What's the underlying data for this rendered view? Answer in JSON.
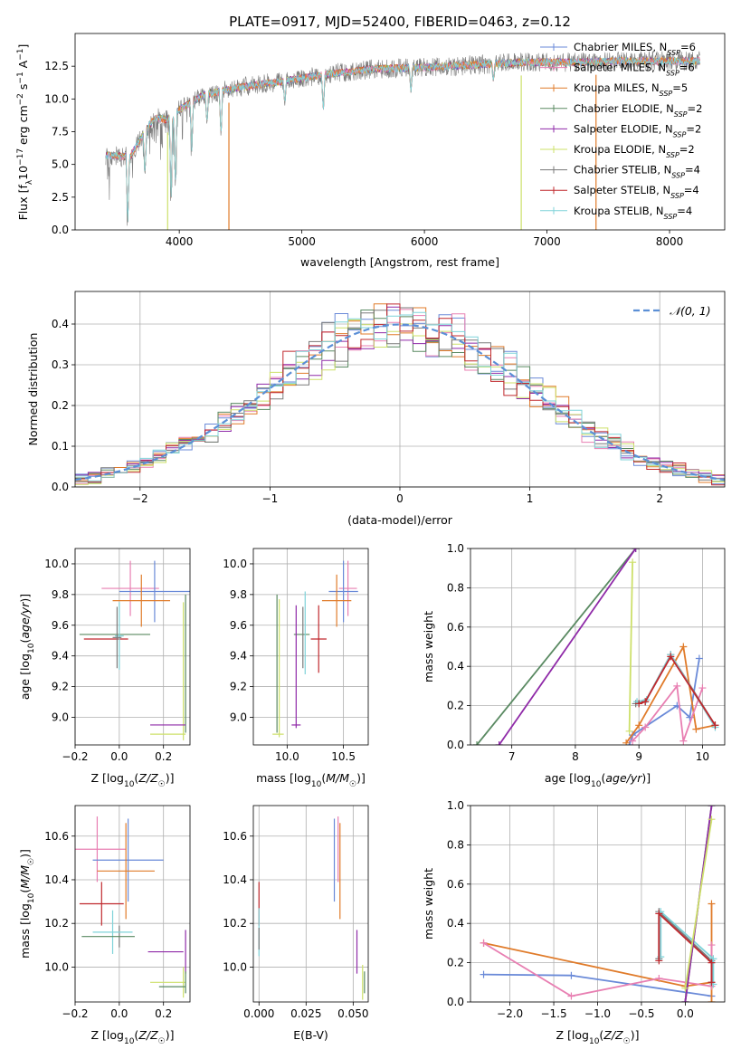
{
  "figure_title": "PLATE=0917, MJD=52400, FIBERID=0463, z=0.12",
  "colors": {
    "chabrier_miles": "#6a8ad8",
    "salpeter_miles": "#e87fb2",
    "kroupa_miles": "#e07b2a",
    "chabrier_elodie": "#5a8a62",
    "salpeter_elodie": "#8f2aa8",
    "kroupa_elodie": "#cde06a",
    "chabrier_stelib": "#7a7a7a",
    "salpeter_stelib": "#c0282d",
    "kroupa_stelib": "#7fd3d9",
    "gaussian": "#5b8fd6",
    "grid": "#b0b0b0"
  },
  "legend_entries": [
    {
      "key": "chabrier_miles",
      "label": "Chabrier MILES, N",
      "sub": "SSP",
      "tail": "=6"
    },
    {
      "key": "salpeter_miles",
      "label": "Salpeter MILES, N",
      "sub": "SSP",
      "tail": "=6"
    },
    {
      "key": "kroupa_miles",
      "label": "Kroupa MILES, N",
      "sub": "SSP",
      "tail": "=5"
    },
    {
      "key": "chabrier_elodie",
      "label": "Chabrier ELODIE, N",
      "sub": "SSP",
      "tail": "=2"
    },
    {
      "key": "salpeter_elodie",
      "label": "Salpeter ELODIE, N",
      "sub": "SSP",
      "tail": "=2"
    },
    {
      "key": "kroupa_elodie",
      "label": "Kroupa ELODIE, N",
      "sub": "SSP",
      "tail": "=2"
    },
    {
      "key": "chabrier_stelib",
      "label": "Chabrier STELIB, N",
      "sub": "SSP",
      "tail": "=4"
    },
    {
      "key": "salpeter_stelib",
      "label": "Salpeter STELIB, N",
      "sub": "SSP",
      "tail": "=4"
    },
    {
      "key": "kroupa_stelib",
      "label": "Kroupa STELIB, N",
      "sub": "SSP",
      "tail": "=4"
    }
  ],
  "chart_data": [
    {
      "id": "spectrum",
      "type": "line",
      "title": "PLATE=0917, MJD=52400, FIBERID=0463, z=0.12",
      "xlabel": "wavelength [Angstrom, rest frame]",
      "ylabel": "Flux [f_λ 10^-17 erg cm^-2 s^-1 A^-1]",
      "xlim": [
        3150,
        8450
      ],
      "ylim": [
        0,
        15
      ],
      "xticks": [
        4000,
        5000,
        6000,
        7000,
        8000
      ],
      "yticks": [
        0.0,
        2.5,
        5.0,
        7.5,
        10.0,
        12.5
      ],
      "continuum_knots": [
        [
          3400,
          5.7
        ],
        [
          3600,
          5.6
        ],
        [
          3700,
          7.2
        ],
        [
          3800,
          8.6
        ],
        [
          3900,
          8.4
        ],
        [
          4000,
          9.2
        ],
        [
          4200,
          10.3
        ],
        [
          4500,
          10.9
        ],
        [
          4800,
          11.3
        ],
        [
          5000,
          11.6
        ],
        [
          5300,
          12.0
        ],
        [
          5600,
          12.3
        ],
        [
          6000,
          12.4
        ],
        [
          6400,
          12.6
        ],
        [
          6800,
          12.8
        ],
        [
          7200,
          12.8
        ],
        [
          7600,
          12.9
        ],
        [
          8000,
          12.9
        ],
        [
          8250,
          12.9
        ]
      ],
      "dips": [
        [
          3580,
          0.6
        ],
        [
          3720,
          4.0
        ],
        [
          3933,
          2.0
        ],
        [
          3968,
          3.0
        ],
        [
          4102,
          6.0
        ],
        [
          4226,
          8.0
        ],
        [
          4340,
          7.0
        ],
        [
          4861,
          9.5
        ],
        [
          5175,
          9.0
        ],
        [
          5890,
          10.5
        ],
        [
          6563,
          11.3
        ]
      ],
      "spikes": [
        [
          3905,
          "kroupa_elodie"
        ],
        [
          4405,
          "kroupa_miles"
        ],
        [
          6790,
          "kroupa_elodie"
        ],
        [
          7400,
          "kroupa_miles"
        ]
      ]
    },
    {
      "id": "residuals",
      "type": "histogram",
      "xlabel": "(data-model)/error",
      "ylabel": "Normed distribution",
      "xlim": [
        -2.5,
        2.5
      ],
      "ylim": [
        0,
        0.48
      ],
      "xticks": [
        -2,
        -1,
        0,
        1,
        2
      ],
      "yticks": [
        0.0,
        0.1,
        0.2,
        0.3,
        0.4
      ],
      "bin_width": 0.1,
      "legend": "𝒩(0, 1)"
    },
    {
      "id": "age_vs_z",
      "type": "errorbar",
      "xlabel": "Z [log10(Z/Z☉)]",
      "ylabel": "age [log10(age/yr)]",
      "xlim": [
        -0.2,
        0.32
      ],
      "ylim": [
        8.82,
        10.1
      ],
      "xticks": [
        -0.2,
        0.0,
        0.2
      ],
      "yticks": [
        9.0,
        9.2,
        9.4,
        9.6,
        9.8,
        10.0
      ],
      "points": [
        {
          "key": "salpeter_miles",
          "x": 0.05,
          "xerr": 0.13,
          "y": 9.84,
          "yerr": 0.18
        },
        {
          "key": "chabrier_miles",
          "x": 0.16,
          "xerr": 0.16,
          "y": 9.82,
          "yerr": 0.2
        },
        {
          "key": "kroupa_miles",
          "x": 0.1,
          "xerr": 0.13,
          "y": 9.76,
          "yerr": 0.17
        },
        {
          "key": "chabrier_elodie",
          "x": -0.02,
          "xerr": 0.16,
          "y": 9.54,
          "yerr": 0.0
        },
        {
          "key": "salpeter_stelib",
          "x": -0.06,
          "xerr": 0.1,
          "y": 9.51,
          "yerr": 0.0
        },
        {
          "key": "kroupa_stelib",
          "x": 0.0,
          "xerr": 0.02,
          "y": 9.53,
          "yerr": 0.22
        },
        {
          "key": "chabrier_stelib",
          "x": -0.01,
          "xerr": 0.02,
          "y": 9.52,
          "yerr": 0.2
        },
        {
          "key": "salpeter_elodie",
          "x": 0.3,
          "xerr": 0.0,
          "y": 8.95,
          "yerr": 0.0
        },
        {
          "key": "kroupa_elodie",
          "x": 0.29,
          "xerr": 0.0,
          "y": 9.3,
          "yerr": 0.45
        },
        {
          "key": "chabrier_elodie",
          "x": 0.3,
          "xerr": 0.0,
          "y": 9.35,
          "yerr": 0.45
        },
        {
          "key": "salpeter_elodie",
          "x": 0.22,
          "xerr": 0.08,
          "y": 8.95,
          "yerr": 0.0
        },
        {
          "key": "kroupa_elodie",
          "x": 0.22,
          "xerr": 0.08,
          "y": 8.89,
          "yerr": 0.0
        }
      ]
    },
    {
      "id": "age_vs_mass",
      "type": "errorbar",
      "xlabel": "mass [log10(M/M☉)]",
      "ylabel": "",
      "xlim": [
        9.7,
        10.72
      ],
      "ylim": [
        8.82,
        10.1
      ],
      "xticks": [
        10.0,
        10.5
      ],
      "yticks": [
        9.0,
        9.2,
        9.4,
        9.6,
        9.8,
        10.0
      ],
      "points": [
        {
          "key": "salpeter_miles",
          "x": 10.54,
          "xerr": 0.08,
          "y": 9.84,
          "yerr": 0.18
        },
        {
          "key": "chabrier_miles",
          "x": 10.5,
          "xerr": 0.13,
          "y": 9.82,
          "yerr": 0.2
        },
        {
          "key": "kroupa_miles",
          "x": 10.44,
          "xerr": 0.13,
          "y": 9.76,
          "yerr": 0.17
        },
        {
          "key": "chabrier_elodie",
          "x": 10.13,
          "xerr": 0.07,
          "y": 9.54,
          "yerr": 0.0
        },
        {
          "key": "salpeter_stelib",
          "x": 10.28,
          "xerr": 0.07,
          "y": 9.51,
          "yerr": 0.22
        },
        {
          "key": "kroupa_stelib",
          "x": 10.16,
          "xerr": 0.0,
          "y": 9.55,
          "yerr": 0.27
        },
        {
          "key": "chabrier_stelib",
          "x": 10.14,
          "xerr": 0.0,
          "y": 9.52,
          "yerr": 0.2
        },
        {
          "key": "salpeter_elodie",
          "x": 10.08,
          "xerr": 0.0,
          "y": 9.33,
          "yerr": 0.4
        },
        {
          "key": "salpeter_elodie",
          "x": 10.08,
          "xerr": 0.04,
          "y": 8.95,
          "yerr": 0.0
        },
        {
          "key": "kroupa_elodie",
          "x": 9.93,
          "xerr": 0.0,
          "y": 9.32,
          "yerr": 0.45
        },
        {
          "key": "chabrier_elodie",
          "x": 9.91,
          "xerr": 0.0,
          "y": 9.35,
          "yerr": 0.45
        },
        {
          "key": "kroupa_elodie",
          "x": 9.92,
          "xerr": 0.05,
          "y": 8.89,
          "yerr": 0.0
        }
      ]
    },
    {
      "id": "weight_vs_age",
      "type": "line",
      "xlabel": "age [log10(age/yr)]",
      "ylabel": "mass weight",
      "xlim": [
        6.35,
        10.35
      ],
      "ylim": [
        0,
        1
      ],
      "xticks": [
        7,
        8,
        9,
        10
      ],
      "yticks": [
        0.0,
        0.2,
        0.4,
        0.6,
        0.8,
        1.0
      ],
      "series": [
        {
          "key": "chabrier_elodie",
          "x": [
            6.45,
            8.95
          ],
          "y": [
            0.0,
            1.0
          ]
        },
        {
          "key": "salpeter_elodie",
          "x": [
            6.8,
            8.95
          ],
          "y": [
            0.0,
            1.0
          ]
        },
        {
          "key": "kroupa_elodie",
          "x": [
            8.85,
            8.9
          ],
          "y": [
            0.07,
            0.93
          ]
        },
        {
          "key": "chabrier_miles",
          "x": [
            8.85,
            8.9,
            9.6,
            9.8,
            9.95
          ],
          "y": [
            0.0,
            0.05,
            0.2,
            0.14,
            0.44
          ]
        },
        {
          "key": "kroupa_miles",
          "x": [
            8.8,
            9.0,
            9.7,
            9.9,
            10.2
          ],
          "y": [
            0.01,
            0.1,
            0.5,
            0.08,
            0.1
          ]
        },
        {
          "key": "salpeter_miles",
          "x": [
            8.9,
            9.1,
            9.6,
            9.7,
            10.0
          ],
          "y": [
            0.02,
            0.09,
            0.3,
            0.02,
            0.29
          ]
        },
        {
          "key": "chabrier_stelib",
          "x": [
            8.95,
            9.1,
            9.5,
            10.2
          ],
          "y": [
            0.21,
            0.22,
            0.46,
            0.1
          ]
        },
        {
          "key": "kroupa_stelib",
          "x": [
            8.97,
            9.12,
            9.5,
            10.2
          ],
          "y": [
            0.22,
            0.23,
            0.46,
            0.09
          ]
        },
        {
          "key": "salpeter_stelib",
          "x": [
            9.0,
            9.1,
            9.5,
            10.2
          ],
          "y": [
            0.21,
            0.22,
            0.45,
            0.1
          ]
        }
      ]
    },
    {
      "id": "mass_vs_z",
      "type": "errorbar",
      "xlabel": "Z [log10(Z/Z☉)]",
      "ylabel": "mass [log10(M/M☉)]",
      "xlim": [
        -0.2,
        0.32
      ],
      "ylim": [
        9.84,
        10.74
      ],
      "xticks": [
        -0.2,
        0.0,
        0.2
      ],
      "yticks": [
        10.0,
        10.2,
        10.4,
        10.6
      ],
      "points": [
        {
          "key": "salpeter_miles",
          "x": -0.1,
          "xerr": 0.13,
          "y": 10.54,
          "yerr": 0.15
        },
        {
          "key": "chabrier_miles",
          "x": 0.04,
          "xerr": 0.16,
          "y": 10.49,
          "yerr": 0.19
        },
        {
          "key": "kroupa_miles",
          "x": 0.03,
          "xerr": 0.13,
          "y": 10.44,
          "yerr": 0.22
        },
        {
          "key": "salpeter_stelib",
          "x": -0.08,
          "xerr": 0.1,
          "y": 10.29,
          "yerr": 0.1
        },
        {
          "key": "chabrier_stelib",
          "x": 0.0,
          "xerr": 0.0,
          "y": 10.14,
          "yerr": 0.05
        },
        {
          "key": "kroupa_stelib",
          "x": -0.03,
          "xerr": 0.09,
          "y": 10.16,
          "yerr": 0.1
        },
        {
          "key": "chabrier_elodie",
          "x": -0.05,
          "xerr": 0.12,
          "y": 10.14,
          "yerr": 0.0
        },
        {
          "key": "salpeter_elodie",
          "x": 0.21,
          "xerr": 0.08,
          "y": 10.07,
          "yerr": 0.0
        },
        {
          "key": "salpeter_elodie",
          "x": 0.3,
          "xerr": 0.0,
          "y": 10.07,
          "yerr": 0.1
        },
        {
          "key": "kroupa_elodie",
          "x": 0.22,
          "xerr": 0.08,
          "y": 9.93,
          "yerr": 0.0
        },
        {
          "key": "kroupa_elodie",
          "x": 0.29,
          "xerr": 0.0,
          "y": 9.93,
          "yerr": 0.07
        },
        {
          "key": "chabrier_elodie",
          "x": 0.24,
          "xerr": 0.06,
          "y": 9.91,
          "yerr": 0.0
        },
        {
          "key": "chabrier_elodie",
          "x": 0.3,
          "xerr": 0.0,
          "y": 9.93,
          "yerr": 0.05
        }
      ]
    },
    {
      "id": "mass_vs_ebv",
      "type": "errorbar",
      "xlabel": "E(B-V)",
      "ylabel": "",
      "xlim": [
        -0.003,
        0.058
      ],
      "ylim": [
        9.84,
        10.74
      ],
      "xticks": [
        0.0,
        0.025,
        0.05
      ],
      "yticks": [
        10.0,
        10.2,
        10.4,
        10.6
      ],
      "points": [
        {
          "key": "salpeter_stelib",
          "x": 0.0,
          "xerr": 0.0,
          "y": 10.29,
          "yerr": 0.1
        },
        {
          "key": "kroupa_stelib",
          "x": 0.0,
          "xerr": 0.0,
          "y": 10.16,
          "yerr": 0.11
        },
        {
          "key": "chabrier_stelib",
          "x": 0.0,
          "xerr": 0.0,
          "y": 10.13,
          "yerr": 0.05
        },
        {
          "key": "salpeter_miles",
          "x": 0.042,
          "xerr": 0.0,
          "y": 10.54,
          "yerr": 0.15
        },
        {
          "key": "chabrier_miles",
          "x": 0.04,
          "xerr": 0.0,
          "y": 10.49,
          "yerr": 0.19
        },
        {
          "key": "kroupa_miles",
          "x": 0.043,
          "xerr": 0.0,
          "y": 10.44,
          "yerr": 0.22
        },
        {
          "key": "salpeter_elodie",
          "x": 0.052,
          "xerr": 0.0,
          "y": 10.07,
          "yerr": 0.1
        },
        {
          "key": "kroupa_elodie",
          "x": 0.055,
          "xerr": 0.0,
          "y": 9.93,
          "yerr": 0.08
        },
        {
          "key": "chabrier_elodie",
          "x": 0.056,
          "xerr": 0.0,
          "y": 9.93,
          "yerr": 0.05
        }
      ]
    },
    {
      "id": "weight_vs_z",
      "type": "line",
      "xlabel": "Z [log10(Z/Z☉)]",
      "ylabel": "mass weight",
      "xlim": [
        -2.45,
        0.45
      ],
      "ylim": [
        0,
        1
      ],
      "xticks": [
        -2.0,
        -1.5,
        -1.0,
        -0.5,
        0.0
      ],
      "yticks": [
        0.0,
        0.2,
        0.4,
        0.6,
        0.8,
        1.0
      ],
      "series": [
        {
          "key": "chabrier_miles",
          "x": [
            -2.3,
            -1.3,
            0.3
          ],
          "y": [
            0.14,
            0.135,
            0.03
          ]
        },
        {
          "key": "kroupa_miles",
          "x": [
            -2.3,
            0.0,
            0.3,
            0.3,
            0.3
          ],
          "y": [
            0.3,
            0.08,
            0.1,
            0.5,
            0.0
          ]
        },
        {
          "key": "salpeter_miles",
          "x": [
            -2.3,
            -1.3,
            -0.3,
            0.3,
            0.3
          ],
          "y": [
            0.3,
            0.03,
            0.12,
            0.08,
            0.29
          ]
        },
        {
          "key": "chabrier_stelib",
          "x": [
            -0.3,
            -0.3,
            0.3,
            0.3
          ],
          "y": [
            0.22,
            0.46,
            0.21,
            0.1
          ]
        },
        {
          "key": "kroupa_stelib",
          "x": [
            -0.28,
            -0.28,
            0.32,
            0.32
          ],
          "y": [
            0.23,
            0.46,
            0.22,
            0.09
          ]
        },
        {
          "key": "salpeter_stelib",
          "x": [
            -0.3,
            -0.3,
            0.3,
            0.3
          ],
          "y": [
            0.21,
            0.45,
            0.2,
            0.1
          ]
        },
        {
          "key": "chabrier_elodie",
          "x": [
            0.0,
            0.3
          ],
          "y": [
            0.0,
            1.0
          ]
        },
        {
          "key": "salpeter_elodie",
          "x": [
            0.0,
            0.3
          ],
          "y": [
            0.0,
            1.0
          ]
        },
        {
          "key": "kroupa_elodie",
          "x": [
            0.0,
            0.3
          ],
          "y": [
            0.07,
            0.93
          ]
        }
      ]
    }
  ]
}
